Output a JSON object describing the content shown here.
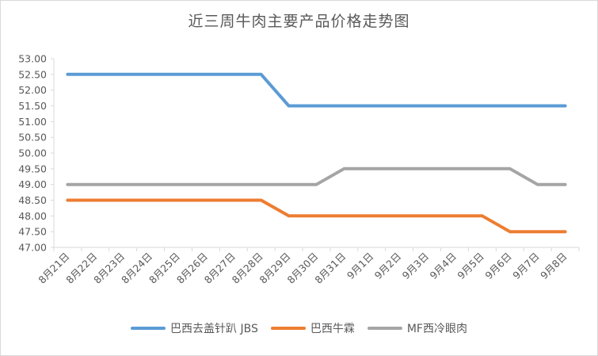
{
  "chart_data": {
    "type": "line",
    "title": "近三周牛肉主要产品价格走势图",
    "xlabel": "",
    "ylabel": "",
    "categories": [
      "8月21日",
      "8月22日",
      "8月23日",
      "8月24日",
      "8月25日",
      "8月26日",
      "8月27日",
      "8月28日",
      "8月29日",
      "8月30日",
      "8月31日",
      "9月1日",
      "9月2日",
      "9月3日",
      "9月4日",
      "9月5日",
      "9月6日",
      "9月7日",
      "9月8日"
    ],
    "ylim": [
      47.0,
      53.0
    ],
    "ytick_step": 0.5,
    "ytick_labels": [
      "47.00",
      "47.50",
      "48.00",
      "48.50",
      "49.00",
      "49.50",
      "50.00",
      "50.50",
      "51.00",
      "51.50",
      "52.00",
      "52.50",
      "53.00"
    ],
    "grid": false,
    "legend_position": "bottom",
    "series": [
      {
        "name": "巴西去盖针趴 JBS",
        "color": "#5b9bd5",
        "values": [
          52.5,
          52.5,
          52.5,
          52.5,
          52.5,
          52.5,
          52.5,
          52.5,
          51.5,
          51.5,
          51.5,
          51.5,
          51.5,
          51.5,
          51.5,
          51.5,
          51.5,
          51.5,
          51.5
        ]
      },
      {
        "name": "巴西牛霖",
        "color": "#ed7d31",
        "values": [
          48.5,
          48.5,
          48.5,
          48.5,
          48.5,
          48.5,
          48.5,
          48.5,
          48.0,
          48.0,
          48.0,
          48.0,
          48.0,
          48.0,
          48.0,
          48.0,
          47.5,
          47.5,
          47.5
        ]
      },
      {
        "name": "MF西冷眼肉",
        "color": "#a5a5a5",
        "values": [
          49.0,
          49.0,
          49.0,
          49.0,
          49.0,
          49.0,
          49.0,
          49.0,
          49.0,
          49.0,
          49.5,
          49.5,
          49.5,
          49.5,
          49.5,
          49.5,
          49.5,
          49.0,
          49.0
        ]
      }
    ]
  }
}
